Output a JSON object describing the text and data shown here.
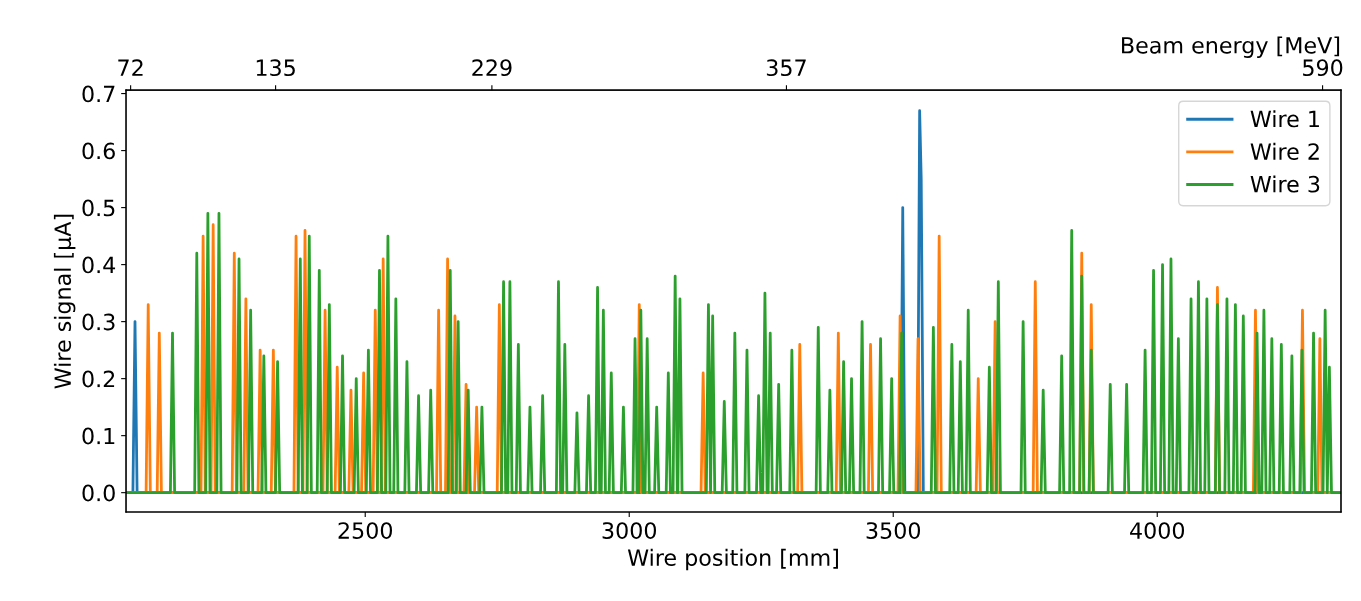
{
  "chart_data": {
    "type": "line",
    "xlabel": "Wire position [mm]",
    "ylabel": "Wire signal [μA]",
    "x2label": "Beam energy [MeV]",
    "xlim": [
      2047,
      4348
    ],
    "xticks": [
      2500,
      3000,
      3500,
      4000
    ],
    "x2lim": [
      70,
      598
    ],
    "x2ticks": [
      72,
      135,
      229,
      357,
      590
    ],
    "ylim": [
      -0.034,
      0.706
    ],
    "yticks": [
      {
        "value": 0,
        "label": "0.0"
      },
      0.1,
      0.2,
      0.3,
      0.4,
      0.5,
      0.6,
      0.7
    ],
    "legend": "top right",
    "grid": false,
    "line_style": "solid",
    "marker": "none",
    "series": [
      {
        "name": "Wire 1",
        "color": "#1f77b4",
        "x": [
          2047,
          2060,
          2064,
          2068,
          3514,
          3518,
          3522,
          3546,
          3550,
          3553,
          3557,
          4348
        ],
        "values": [
          0,
          0,
          0.3,
          0,
          0,
          0.5,
          0,
          0,
          0.67,
          0.55,
          0,
          0
        ]
      },
      {
        "name": "Wire 2",
        "color": "#ff7f0e",
        "x": [
          2047,
          2085,
          2089,
          2093,
          2106,
          2110,
          2114,
          2189,
          2193,
          2197,
          2208,
          2212,
          2216,
          2248,
          2252,
          2256,
          2270,
          2274,
          2278,
          2297,
          2301,
          2305,
          2322,
          2326,
          2330,
          2365,
          2369,
          2373,
          2382,
          2386,
          2390,
          2420,
          2424,
          2428,
          2443,
          2447,
          2451,
          2469,
          2473,
          2477,
          2493,
          2497,
          2501,
          2515,
          2519,
          2523,
          2530,
          2534,
          2538,
          2635,
          2639,
          2643,
          2652,
          2656,
          2660,
          2666,
          2670,
          2674,
          2687,
          2691,
          2695,
          2707,
          2711,
          2715,
          2750,
          2754,
          2758,
          3015,
          3019,
          3023,
          3136,
          3140,
          3144,
          3319,
          3323,
          3327,
          3392,
          3396,
          3400,
          3453,
          3457,
          3461,
          3509,
          3513,
          3517,
          3543,
          3547,
          3551,
          3583,
          3587,
          3591,
          3657,
          3661,
          3665,
          3689,
          3693,
          3697,
          3765,
          3769,
          3773,
          3853,
          3857,
          3861,
          3871,
          3875,
          3879,
          4110,
          4114,
          4118,
          4182,
          4186,
          4190,
          4271,
          4275,
          4279,
          4304,
          4308,
          4312,
          4348
        ],
        "values": [
          0,
          0,
          0.33,
          0,
          0,
          0.28,
          0,
          0,
          0.45,
          0,
          0,
          0.47,
          0,
          0,
          0.42,
          0,
          0,
          0.34,
          0,
          0,
          0.25,
          0,
          0,
          0.25,
          0,
          0,
          0.45,
          0,
          0,
          0.46,
          0,
          0,
          0.32,
          0,
          0,
          0.22,
          0,
          0,
          0.18,
          0,
          0,
          0.21,
          0,
          0,
          0.32,
          0,
          0,
          0.41,
          0,
          0,
          0.32,
          0,
          0,
          0.41,
          0,
          0,
          0.31,
          0,
          0,
          0.19,
          0,
          0,
          0.15,
          0,
          0,
          0.33,
          0,
          0,
          0.33,
          0,
          0,
          0.21,
          0,
          0,
          0.26,
          0,
          0,
          0.28,
          0,
          0,
          0.26,
          0,
          0,
          0.31,
          0,
          0,
          0.27,
          0,
          0,
          0.45,
          0,
          0,
          0.2,
          0,
          0,
          0.3,
          0,
          0,
          0.37,
          0,
          0,
          0.42,
          0,
          0,
          0.33,
          0,
          0,
          0.36,
          0,
          0,
          0.32,
          0,
          0,
          0.32,
          0,
          0,
          0.27,
          0,
          0
        ]
      },
      {
        "name": "Wire 3",
        "color": "#2ca02c",
        "x": [
          2047,
          2131,
          2135,
          2139,
          2177,
          2181,
          2185,
          2198,
          2202,
          2206,
          2219,
          2223,
          2227,
          2257,
          2261,
          2265,
          2279,
          2283,
          2287,
          2304,
          2308,
          2312,
          2330,
          2334,
          2338,
          2373,
          2377,
          2381,
          2390,
          2394,
          2398,
          2409,
          2413,
          2417,
          2428,
          2432,
          2436,
          2453,
          2457,
          2461,
          2479,
          2483,
          2487,
          2502,
          2506,
          2510,
          2523,
          2527,
          2531,
          2539,
          2543,
          2547,
          2554,
          2558,
          2562,
          2575,
          2579,
          2583,
          2597,
          2601,
          2605,
          2620,
          2624,
          2628,
          2657,
          2661,
          2665,
          2672,
          2676,
          2680,
          2691,
          2695,
          2699,
          2717,
          2721,
          2725,
          2758,
          2762,
          2766,
          2770,
          2774,
          2778,
          2786,
          2790,
          2794,
          2808,
          2812,
          2816,
          2832,
          2836,
          2840,
          2862,
          2866,
          2870,
          2874,
          2878,
          2882,
          2897,
          2901,
          2905,
          2919,
          2923,
          2927,
          2936,
          2940,
          2944,
          2947,
          2951,
          2955,
          2962,
          2966,
          2970,
          2985,
          2989,
          2993,
          3007,
          3011,
          3015,
          3018,
          3022,
          3026,
          3030,
          3034,
          3038,
          3048,
          3052,
          3056,
          3070,
          3074,
          3078,
          3083,
          3087,
          3091,
          3092,
          3096,
          3100,
          3146,
          3150,
          3154,
          3154,
          3158,
          3162,
          3176,
          3180,
          3184,
          3196,
          3200,
          3204,
          3219,
          3223,
          3227,
          3241,
          3245,
          3249,
          3253,
          3257,
          3261,
          3263,
          3267,
          3271,
          3279,
          3283,
          3287,
          3304,
          3308,
          3312,
          3354,
          3358,
          3362,
          3376,
          3380,
          3384,
          3402,
          3406,
          3410,
          3417,
          3421,
          3425,
          3437,
          3441,
          3445,
          3472,
          3476,
          3480,
          3493,
          3497,
          3501,
          3512,
          3516,
          3520,
          3572,
          3576,
          3580,
          3607,
          3611,
          3615,
          3623,
          3627,
          3631,
          3638,
          3642,
          3646,
          3678,
          3682,
          3686,
          3695,
          3699,
          3703,
          3742,
          3746,
          3750,
          3780,
          3784,
          3788,
          3815,
          3819,
          3823,
          3834,
          3838,
          3842,
          3853,
          3857,
          3861,
          3871,
          3875,
          3879,
          3907,
          3911,
          3915,
          3938,
          3942,
          3946,
          3973,
          3977,
          3981,
          3989,
          3993,
          3997,
          4006,
          4010,
          4014,
          4022,
          4026,
          4030,
          4036,
          4040,
          4044,
          4060,
          4064,
          4068,
          4074,
          4078,
          4082,
          4090,
          4094,
          4098,
          4110,
          4114,
          4118,
          4128,
          4132,
          4136,
          4144,
          4148,
          4152,
          4159,
          4163,
          4167,
          4185,
          4189,
          4193,
          4198,
          4202,
          4206,
          4213,
          4217,
          4221,
          4231,
          4235,
          4239,
          4251,
          4255,
          4259,
          4270,
          4274,
          4278,
          4292,
          4296,
          4300,
          4314,
          4318,
          4322,
          4322,
          4326,
          4330,
          4348
        ],
        "values": [
          0,
          0,
          0.28,
          0,
          0,
          0.42,
          0,
          0,
          0.49,
          0,
          0,
          0.49,
          0,
          0,
          0.41,
          0,
          0,
          0.32,
          0,
          0,
          0.24,
          0,
          0,
          0.23,
          0,
          0,
          0.41,
          0,
          0,
          0.45,
          0,
          0,
          0.39,
          0,
          0,
          0.33,
          0,
          0,
          0.24,
          0,
          0,
          0.2,
          0,
          0,
          0.25,
          0,
          0,
          0.39,
          0,
          0,
          0.45,
          0,
          0,
          0.34,
          0,
          0,
          0.23,
          0,
          0,
          0.17,
          0,
          0,
          0.18,
          0,
          0,
          0.39,
          0,
          0,
          0.3,
          0,
          0,
          0.18,
          0,
          0,
          0.15,
          0,
          0,
          0.37,
          0,
          0,
          0.37,
          0,
          0,
          0.26,
          0,
          0,
          0.15,
          0,
          0,
          0.17,
          0,
          0,
          0.37,
          0,
          0,
          0.26,
          0,
          0,
          0.14,
          0,
          0,
          0.17,
          0,
          0,
          0.36,
          0,
          0,
          0.32,
          0,
          0,
          0.21,
          0,
          0,
          0.15,
          0,
          0,
          0.27,
          0,
          0,
          0.32,
          0,
          0,
          0.27,
          0,
          0,
          0.15,
          0,
          0,
          0.21,
          0,
          0,
          0.38,
          0,
          0,
          0.34,
          0,
          0,
          0.33,
          0,
          0,
          0.31,
          0,
          0,
          0.16,
          0,
          0,
          0.28,
          0,
          0,
          0.25,
          0,
          0,
          0.17,
          0,
          0,
          0.35,
          0,
          0,
          0.28,
          0,
          0,
          0.19,
          0,
          0,
          0.25,
          0,
          0,
          0.29,
          0,
          0,
          0.18,
          0,
          0,
          0.23,
          0,
          0,
          0.2,
          0,
          0,
          0.3,
          0,
          0,
          0.27,
          0,
          0,
          0.2,
          0,
          0,
          0.28,
          0,
          0,
          0.29,
          0,
          0,
          0.26,
          0,
          0,
          0.23,
          0,
          0,
          0.32,
          0,
          0,
          0.22,
          0,
          0,
          0.37,
          0,
          0,
          0.3,
          0,
          0,
          0.18,
          0,
          0,
          0.24,
          0,
          0,
          0.46,
          0,
          0,
          0.38,
          0,
          0,
          0.25,
          0,
          0,
          0.19,
          0,
          0,
          0.19,
          0,
          0,
          0.25,
          0,
          0,
          0.39,
          0,
          0,
          0.4,
          0,
          0,
          0.41,
          0,
          0,
          0.27,
          0,
          0,
          0.34,
          0,
          0,
          0.37,
          0,
          0,
          0.34,
          0,
          0,
          0.33,
          0,
          0,
          0.34,
          0,
          0,
          0.33,
          0,
          0,
          0.31,
          0,
          0,
          0.28,
          0,
          0,
          0.32,
          0,
          0,
          0.27,
          0,
          0,
          0.26,
          0,
          0,
          0.24,
          0,
          0,
          0.25,
          0,
          0,
          0.28,
          0,
          0,
          0.32,
          0,
          0,
          0.22,
          0,
          0
        ]
      }
    ]
  }
}
